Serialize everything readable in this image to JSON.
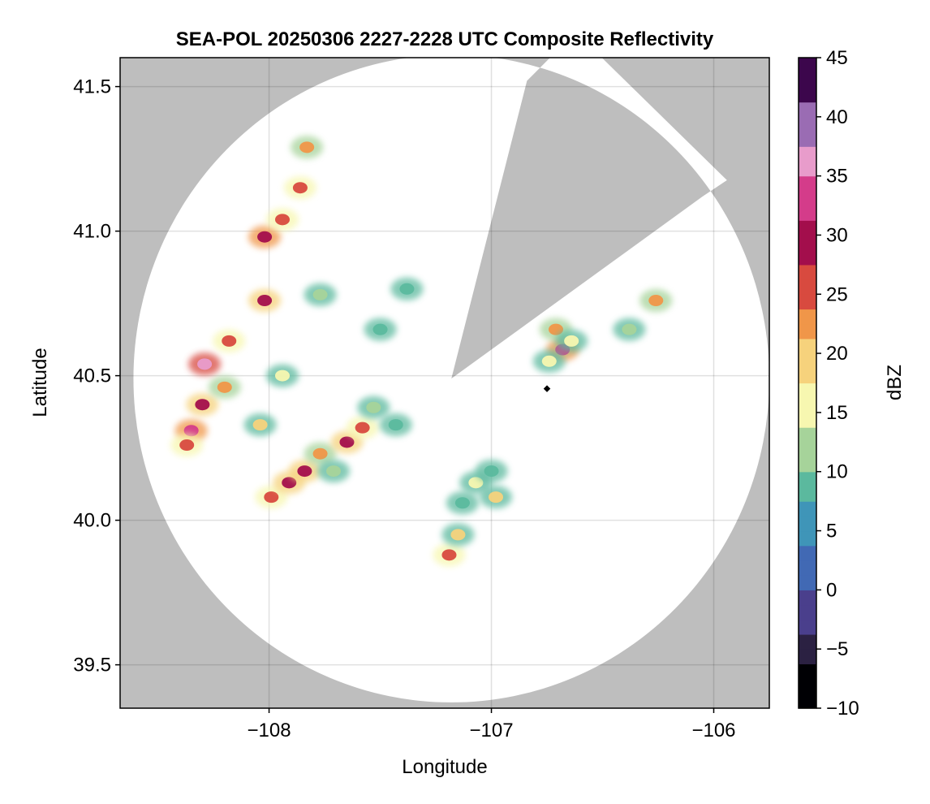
{
  "chart_data": {
    "type": "heatmap",
    "title": "SEA-POL 20250306 2227-2228 UTC Composite Reflectivity",
    "xlabel": "Longitude",
    "ylabel": "Latitude",
    "xlim": [
      -108.67,
      -105.75
    ],
    "ylim": [
      39.35,
      41.6
    ],
    "xticks": [
      -108,
      -107,
      -106
    ],
    "xtick_labels": [
      "−108",
      "−107",
      "−106"
    ],
    "yticks": [
      39.5,
      40.0,
      40.5,
      41.0,
      41.5
    ],
    "ytick_labels": [
      "39.5",
      "40.0",
      "40.5",
      "41.0",
      "41.5"
    ],
    "grid": true,
    "radar": {
      "center": [
        -107.18,
        40.49
      ],
      "range_lon": 1.43,
      "range_lat": 1.12,
      "blocked_sectors": [
        {
          "lon1": -106.84,
          "lat1": 41.52,
          "lon2": -106.05,
          "lat2": 41.12
        }
      ]
    },
    "site_marker": {
      "lon": -106.75,
      "lat": 40.455
    },
    "colorbar": {
      "label": "dBZ",
      "min": -10,
      "max": 45,
      "ticks": [
        -10,
        -5,
        0,
        5,
        10,
        15,
        20,
        25,
        30,
        35,
        40,
        45
      ],
      "tick_labels": [
        "−10",
        "−5",
        "0",
        "5",
        "10",
        "15",
        "20",
        "25",
        "30",
        "35",
        "40",
        "45"
      ],
      "colormap": [
        "#000004",
        "#2b2142",
        "#4a3f8c",
        "#4169b4",
        "#3f95b8",
        "#5bb99e",
        "#a6d39a",
        "#f7f7b0",
        "#f6d27c",
        "#f09649",
        "#d84a3f",
        "#a30e4c",
        "#d43c8a",
        "#e89ccb",
        "#9a6cb3",
        "#3c064c"
      ]
    },
    "echo_cells": [
      {
        "lon": -108.3,
        "lat": 40.4,
        "dbz": 28
      },
      {
        "lon": -108.2,
        "lat": 40.46,
        "dbz": 22
      },
      {
        "lon": -108.29,
        "lat": 40.54,
        "dbz": 35
      },
      {
        "lon": -108.35,
        "lat": 40.31,
        "dbz": 33
      },
      {
        "lon": -108.37,
        "lat": 40.26,
        "dbz": 25
      },
      {
        "lon": -108.18,
        "lat": 40.62,
        "dbz": 27
      },
      {
        "lon": -108.02,
        "lat": 40.76,
        "dbz": 28
      },
      {
        "lon": -108.02,
        "lat": 40.98,
        "dbz": 31
      },
      {
        "lon": -107.94,
        "lat": 41.04,
        "dbz": 26
      },
      {
        "lon": -107.86,
        "lat": 41.15,
        "dbz": 25
      },
      {
        "lon": -107.83,
        "lat": 41.29,
        "dbz": 24
      },
      {
        "lon": -107.94,
        "lat": 40.5,
        "dbz": 15
      },
      {
        "lon": -108.04,
        "lat": 40.33,
        "dbz": 18
      },
      {
        "lon": -107.99,
        "lat": 40.08,
        "dbz": 27
      },
      {
        "lon": -107.91,
        "lat": 40.13,
        "dbz": 30
      },
      {
        "lon": -107.84,
        "lat": 40.17,
        "dbz": 29
      },
      {
        "lon": -107.77,
        "lat": 40.23,
        "dbz": 24
      },
      {
        "lon": -107.65,
        "lat": 40.27,
        "dbz": 29
      },
      {
        "lon": -107.58,
        "lat": 40.32,
        "dbz": 27
      },
      {
        "lon": -107.53,
        "lat": 40.39,
        "dbz": 12
      },
      {
        "lon": -107.43,
        "lat": 40.33,
        "dbz": 8
      },
      {
        "lon": -107.71,
        "lat": 40.17,
        "dbz": 14
      },
      {
        "lon": -107.07,
        "lat": 40.13,
        "dbz": 15
      },
      {
        "lon": -106.98,
        "lat": 40.08,
        "dbz": 18
      },
      {
        "lon": -107.13,
        "lat": 40.06,
        "dbz": 10
      },
      {
        "lon": -107.0,
        "lat": 40.17,
        "dbz": 8
      },
      {
        "lon": -107.19,
        "lat": 39.88,
        "dbz": 26
      },
      {
        "lon": -107.15,
        "lat": 39.95,
        "dbz": 18
      },
      {
        "lon": -106.68,
        "lat": 40.59,
        "dbz": 32
      },
      {
        "lon": -106.71,
        "lat": 40.66,
        "dbz": 24
      },
      {
        "lon": -106.64,
        "lat": 40.62,
        "dbz": 16
      },
      {
        "lon": -106.74,
        "lat": 40.55,
        "dbz": 15
      },
      {
        "lon": -106.26,
        "lat": 40.76,
        "dbz": 22
      },
      {
        "lon": -106.38,
        "lat": 40.66,
        "dbz": 12
      },
      {
        "lon": -107.38,
        "lat": 40.8,
        "dbz": 10
      },
      {
        "lon": -107.5,
        "lat": 40.66,
        "dbz": 9
      },
      {
        "lon": -107.77,
        "lat": 40.78,
        "dbz": 12
      }
    ]
  }
}
